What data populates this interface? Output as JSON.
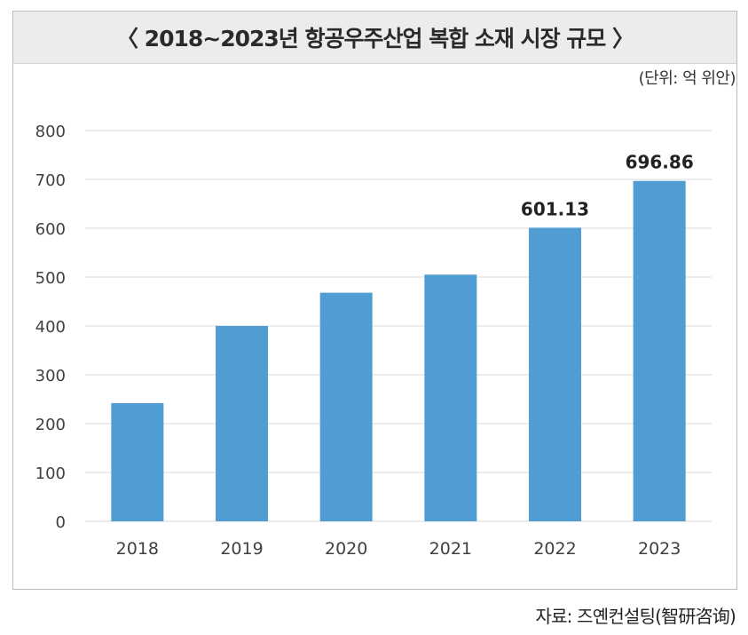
{
  "header": {
    "title": "〈 2018~2023년 항공우주산업 복합 소재 시장 규모 〉",
    "unit": "(단위: 억 위안)"
  },
  "footer": {
    "source": "자료: 즈옌컨설팅(智研咨询)"
  },
  "colors": {
    "bar": "#4f9dd3",
    "grid": "#d9d9d9",
    "axis_text": "#404040",
    "label_text": "#222222"
  },
  "chart_data": {
    "type": "bar",
    "title": "2018~2023년 항공우주산업 복합 소재 시장 규모",
    "unit": "(단위: 억 위안)",
    "categories": [
      "2018",
      "2019",
      "2020",
      "2021",
      "2022",
      "2023"
    ],
    "values": [
      242,
      400,
      468,
      505,
      601.13,
      696.86
    ],
    "data_labels": [
      "",
      "",
      "",
      "",
      "601.13",
      "696.86"
    ],
    "ylim": [
      0,
      800
    ],
    "yticks": [
      0,
      100,
      200,
      300,
      400,
      500,
      600,
      700,
      800
    ],
    "grid": true,
    "legend": "none"
  }
}
